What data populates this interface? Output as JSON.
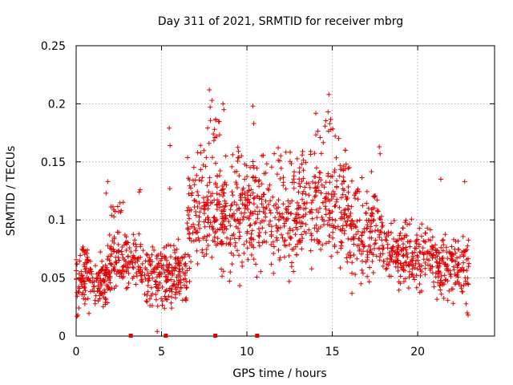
{
  "chart_data": {
    "type": "scatter",
    "title": "Day 311 of 2021, SRMTID for receiver mbrg",
    "xlabel": "GPS time / hours",
    "ylabel": "SRMTID / TECUs",
    "xlim": [
      0,
      24.5
    ],
    "ylim": [
      0,
      0.25
    ],
    "x_ticks": [
      0,
      5,
      10,
      15,
      20
    ],
    "x_tick_labels": [
      "0",
      "5",
      "10",
      "15",
      "20"
    ],
    "y_ticks": [
      0,
      0.05,
      0.1,
      0.15,
      0.2,
      0.25
    ],
    "y_tick_labels": [
      "0",
      "0.05",
      "0.1",
      "0.15",
      "0.2",
      "0.25"
    ],
    "grid": true,
    "marker": "+",
    "color": "#e00000",
    "series": [
      {
        "name": "SRMTID",
        "bands": [
          {
            "x0": 0.0,
            "x1": 2.0,
            "lo": 0.015,
            "hi": 0.075,
            "n": 150
          },
          {
            "x0": 0.3,
            "x1": 0.7,
            "lo": 0.05,
            "hi": 0.085,
            "n": 15
          },
          {
            "x0": 1.8,
            "x1": 3.8,
            "lo": 0.03,
            "hi": 0.1,
            "n": 130
          },
          {
            "x0": 2.0,
            "x1": 3.0,
            "lo": 0.09,
            "hi": 0.125,
            "n": 12
          },
          {
            "x0": 3.8,
            "x1": 6.5,
            "lo": 0.008,
            "hi": 0.095,
            "n": 210
          },
          {
            "x0": 6.5,
            "x1": 8.5,
            "lo": 0.04,
            "hi": 0.17,
            "n": 160
          },
          {
            "x0": 7.6,
            "x1": 8.4,
            "lo": 0.16,
            "hi": 0.205,
            "n": 14
          },
          {
            "x0": 8.5,
            "x1": 12.5,
            "lo": 0.035,
            "hi": 0.175,
            "n": 310
          },
          {
            "x0": 12.5,
            "x1": 16.0,
            "lo": 0.04,
            "hi": 0.18,
            "n": 270
          },
          {
            "x0": 14.0,
            "x1": 15.2,
            "lo": 0.15,
            "hi": 0.2,
            "n": 12
          },
          {
            "x0": 16.0,
            "x1": 18.0,
            "lo": 0.035,
            "hi": 0.15,
            "n": 150
          },
          {
            "x0": 18.0,
            "x1": 21.0,
            "lo": 0.03,
            "hi": 0.11,
            "n": 210
          },
          {
            "x0": 21.0,
            "x1": 23.0,
            "lo": 0.02,
            "hi": 0.1,
            "n": 150
          }
        ],
        "outliers": [
          {
            "x": 5.45,
            "y": 0.179
          },
          {
            "x": 5.5,
            "y": 0.164
          },
          {
            "x": 5.48,
            "y": 0.127
          },
          {
            "x": 4.75,
            "y": 0.004
          },
          {
            "x": 3.75,
            "y": 0.126
          },
          {
            "x": 3.7,
            "y": 0.124
          },
          {
            "x": 0.1,
            "y": 0.018
          },
          {
            "x": 0.05,
            "y": 0.017
          },
          {
            "x": 7.8,
            "y": 0.212
          },
          {
            "x": 7.95,
            "y": 0.203
          },
          {
            "x": 8.6,
            "y": 0.2
          },
          {
            "x": 8.65,
            "y": 0.195
          },
          {
            "x": 10.35,
            "y": 0.198
          },
          {
            "x": 10.4,
            "y": 0.183
          },
          {
            "x": 14.8,
            "y": 0.208
          },
          {
            "x": 14.75,
            "y": 0.193
          },
          {
            "x": 17.75,
            "y": 0.163
          },
          {
            "x": 17.8,
            "y": 0.157
          },
          {
            "x": 21.35,
            "y": 0.135
          },
          {
            "x": 22.75,
            "y": 0.133
          },
          {
            "x": 22.9,
            "y": 0.02
          },
          {
            "x": 22.95,
            "y": 0.018
          },
          {
            "x": 1.75,
            "y": 0.123
          },
          {
            "x": 1.85,
            "y": 0.133
          }
        ]
      }
    ],
    "gap_markers_x": [
      3.2,
      5.25,
      8.15,
      10.6
    ]
  }
}
